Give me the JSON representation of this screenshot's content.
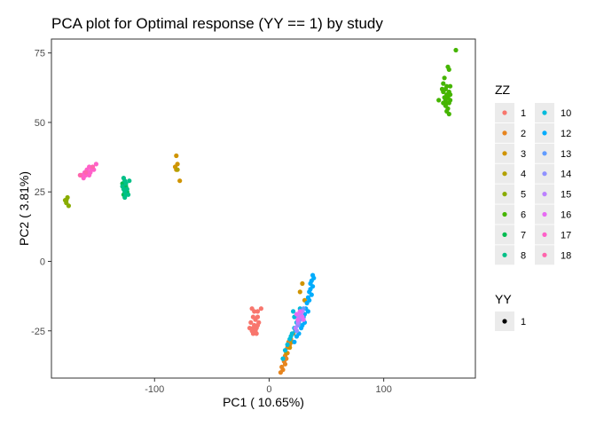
{
  "chart_data": {
    "type": "scatter",
    "title": "PCA plot for Optimal response (YY == 1) by study",
    "xlabel": "PC1 ( 10.65%)",
    "ylabel": "PC2 ( 3.81%)",
    "xlim": [
      -190,
      180
    ],
    "ylim": [
      -42,
      80
    ],
    "x_ticks": [
      -100,
      0,
      100
    ],
    "x_tick_labels": [
      "-100",
      "0",
      "100"
    ],
    "y_ticks": [
      -25,
      0,
      25,
      50,
      75
    ],
    "y_tick_labels": [
      "-25",
      "0",
      "25",
      "50",
      "75"
    ],
    "grid": false,
    "legends": [
      {
        "title": "ZZ",
        "placement": "right",
        "entries": [
          {
            "label": "1",
            "color": "#F8766D"
          },
          {
            "label": "2",
            "color": "#E7851E"
          },
          {
            "label": "3",
            "color": "#D09400"
          },
          {
            "label": "4",
            "color": "#B2A100"
          },
          {
            "label": "5",
            "color": "#89AC00"
          },
          {
            "label": "6",
            "color": "#45B500"
          },
          {
            "label": "7",
            "color": "#00BC51"
          },
          {
            "label": "8",
            "color": "#00C087"
          },
          {
            "label": "10",
            "color": "#00BBDB"
          },
          {
            "label": "12",
            "color": "#00ACFC"
          },
          {
            "label": "13",
            "color": "#619CFF"
          },
          {
            "label": "14",
            "color": "#8F91FF"
          },
          {
            "label": "15",
            "color": "#BC81FF"
          },
          {
            "label": "16",
            "color": "#E76BF3"
          },
          {
            "label": "17",
            "color": "#FF61C9"
          },
          {
            "label": "18",
            "color": "#FF65AC"
          }
        ]
      },
      {
        "title": "YY",
        "placement": "right",
        "entries": [
          {
            "label": "1",
            "color": "#000000"
          }
        ]
      }
    ],
    "series": [
      {
        "name": "1",
        "color": "#F8766D",
        "points": [
          [
            -15,
            -17
          ],
          [
            -13,
            -18
          ],
          [
            -10,
            -18
          ],
          [
            -7,
            -17
          ],
          [
            -14,
            -20
          ],
          [
            -10,
            -20
          ],
          [
            -12,
            -21
          ],
          [
            -9,
            -22
          ],
          [
            -16,
            -22
          ],
          [
            -13,
            -23
          ],
          [
            -10,
            -23
          ],
          [
            -17,
            -24
          ],
          [
            -14,
            -24
          ],
          [
            -11,
            -24
          ],
          [
            -15,
            -25
          ],
          [
            -12,
            -25
          ],
          [
            -14,
            -26
          ],
          [
            -11,
            -26
          ]
        ]
      },
      {
        "name": "2",
        "color": "#E7851E",
        "points": [
          [
            10,
            -40
          ],
          [
            12,
            -39
          ],
          [
            11,
            -38
          ],
          [
            14,
            -37
          ],
          [
            13,
            -36
          ],
          [
            15,
            -35
          ],
          [
            14,
            -34
          ],
          [
            16,
            -33
          ],
          [
            16,
            -31
          ],
          [
            18,
            -30
          ],
          [
            17,
            -29
          ],
          [
            19,
            -28
          ],
          [
            21,
            -26
          ]
        ]
      },
      {
        "name": "3",
        "color": "#D09400",
        "points": [
          [
            -81,
            33
          ],
          [
            -82,
            34
          ],
          [
            -80,
            35
          ],
          [
            -81,
            38
          ],
          [
            -78,
            29
          ],
          [
            15,
            -33
          ],
          [
            18,
            -31
          ],
          [
            20,
            -29
          ],
          [
            29,
            -8
          ],
          [
            27,
            -11
          ],
          [
            31,
            -14
          ],
          [
            27,
            -18
          ]
        ]
      },
      {
        "name": "4",
        "color": "#B2A100",
        "points": [
          [
            -80,
            33
          ]
        ]
      },
      {
        "name": "5",
        "color": "#89AC00",
        "points": [
          [
            -177,
            21
          ],
          [
            -175,
            20
          ],
          [
            -177,
            22
          ],
          [
            -176,
            23
          ],
          [
            -178,
            22
          ]
        ]
      },
      {
        "name": "6",
        "color": "#45B500",
        "points": [
          [
            163,
            76
          ],
          [
            156,
            70
          ],
          [
            157,
            69
          ],
          [
            153,
            66
          ],
          [
            152,
            64
          ],
          [
            155,
            63
          ],
          [
            158,
            63
          ],
          [
            151,
            62
          ],
          [
            154,
            62
          ],
          [
            157,
            61
          ],
          [
            152,
            61
          ],
          [
            155,
            60
          ],
          [
            158,
            60
          ],
          [
            153,
            59
          ],
          [
            156,
            59
          ],
          [
            154,
            58
          ],
          [
            158,
            58
          ],
          [
            152,
            57
          ],
          [
            155,
            57
          ],
          [
            157,
            57
          ],
          [
            154,
            56
          ],
          [
            156,
            55
          ],
          [
            155,
            54
          ],
          [
            157,
            53
          ],
          [
            148,
            58
          ]
        ]
      },
      {
        "name": "7",
        "color": "#00BC51",
        "points": [
          [
            -128,
            28
          ],
          [
            -125,
            27
          ],
          [
            -126,
            26
          ],
          [
            -124,
            25
          ],
          [
            -127,
            24
          ]
        ]
      },
      {
        "name": "8",
        "color": "#00C087",
        "points": [
          [
            -127,
            30
          ],
          [
            -126,
            29
          ],
          [
            -122,
            29
          ],
          [
            -128,
            27
          ],
          [
            -125,
            28
          ],
          [
            -127,
            26
          ],
          [
            -124,
            26
          ],
          [
            -126,
            25
          ],
          [
            -125,
            24
          ],
          [
            -123,
            24
          ],
          [
            -126,
            23
          ]
        ]
      },
      {
        "name": "10",
        "color": "#00BBDB",
        "points": [
          [
            12,
            -35
          ],
          [
            14,
            -32
          ],
          [
            16,
            -30
          ],
          [
            18,
            -28
          ],
          [
            20,
            -26
          ],
          [
            22,
            -24
          ],
          [
            24,
            -22
          ],
          [
            22,
            -20
          ],
          [
            26,
            -21
          ],
          [
            21,
            -18
          ],
          [
            27,
            -17
          ],
          [
            19,
            -27
          ],
          [
            23,
            -25
          ]
        ]
      },
      {
        "name": "12",
        "color": "#00ACFC",
        "points": [
          [
            38,
            -5
          ],
          [
            39,
            -6
          ],
          [
            37,
            -7
          ],
          [
            36,
            -8
          ],
          [
            38,
            -9
          ],
          [
            36,
            -10
          ],
          [
            35,
            -11
          ],
          [
            37,
            -12
          ],
          [
            34,
            -13
          ],
          [
            35,
            -14
          ],
          [
            33,
            -15
          ],
          [
            32,
            -17
          ],
          [
            34,
            -18
          ],
          [
            31,
            -19
          ],
          [
            30,
            -20
          ],
          [
            31,
            -22
          ],
          [
            29,
            -23
          ],
          [
            28,
            -24
          ],
          [
            26,
            -26
          ],
          [
            24,
            -27
          ],
          [
            22,
            -29
          ]
        ]
      },
      {
        "name": "13",
        "color": "#619CFF",
        "points": [
          [
            30,
            -17
          ],
          [
            28,
            -20
          ],
          [
            26,
            -22
          ]
        ]
      },
      {
        "name": "14",
        "color": "#8F91FF",
        "points": [
          [
            25,
            -23
          ],
          [
            27,
            -21
          ],
          [
            24,
            -25
          ]
        ]
      },
      {
        "name": "15",
        "color": "#BC81FF",
        "points": [
          [
            26,
            -20
          ],
          [
            28,
            -19
          ],
          [
            25,
            -22
          ],
          [
            29,
            -18
          ],
          [
            23,
            -24
          ]
        ]
      },
      {
        "name": "16",
        "color": "#E76BF3",
        "points": [
          [
            27,
            -18
          ],
          [
            29,
            -20
          ],
          [
            25,
            -21
          ],
          [
            30,
            -21
          ],
          [
            24,
            -19
          ]
        ]
      },
      {
        "name": "17",
        "color": "#FF61C9",
        "points": [
          [
            -151,
            35
          ],
          [
            -155,
            33
          ],
          [
            -157,
            34
          ],
          [
            -161,
            32
          ],
          [
            -156,
            32
          ],
          [
            -153,
            33
          ],
          [
            -159,
            33
          ],
          [
            -163,
            31
          ],
          [
            -160,
            31
          ],
          [
            -164,
            31
          ],
          [
            -158,
            32
          ],
          [
            -162,
            30
          ],
          [
            -157,
            31
          ]
        ]
      },
      {
        "name": "18",
        "color": "#FF65AC",
        "points": [
          [
            -154,
            34
          ],
          [
            -160,
            32
          ],
          [
            -165,
            31
          ]
        ]
      }
    ]
  }
}
